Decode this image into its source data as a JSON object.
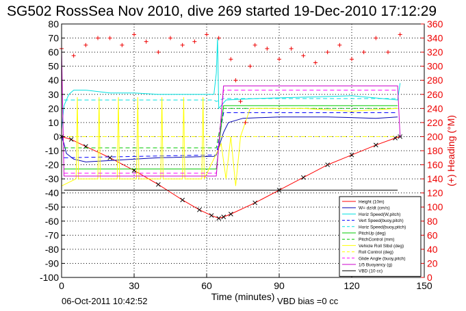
{
  "header": {
    "title": "SG502 RossSea Nov 2010, dive 269 started 19-Dec-2010 17:12:29",
    "timestamp": "06-Oct-2011 10:42:52",
    "vbd_bias": "VBD bias =0 cc"
  },
  "colors": {
    "height": "#ff0000",
    "w": "#0000b0",
    "horiz": "#00e0e0",
    "vert": "#0000ff",
    "pitch": "#00c800",
    "roll": "#ffff00",
    "glide": "#ff00ff",
    "buoy": "#cc00cc",
    "vbd": "#000000",
    "heading": "#ee0000"
  },
  "chart_data": {
    "type": "line",
    "title": "SG502 RossSea Nov 2010, dive 269 started 19-Dec-2010 17:12:29",
    "xlabel": "Time (minutes)",
    "ylabel": "",
    "ylabel_right": "(+) Heading (°M)",
    "xlim": [
      0,
      150
    ],
    "ylim": [
      -100,
      80
    ],
    "ylim_right": [
      0,
      360
    ],
    "xticks": [
      0,
      30,
      60,
      90,
      120,
      150
    ],
    "yticks": [
      -100,
      -90,
      -80,
      -70,
      -60,
      -50,
      -40,
      -30,
      -20,
      -10,
      0,
      10,
      20,
      30,
      40,
      50,
      60,
      70,
      80
    ],
    "yticks_right": [
      0,
      20,
      40,
      60,
      80,
      100,
      120,
      140,
      160,
      180,
      200,
      220,
      240,
      260,
      280,
      300,
      320,
      340,
      360
    ],
    "grid": true,
    "legend_position": "bottom-right",
    "legend": [
      "Height (10m)",
      "W= dz/dt (cm/s)",
      "Horiz Speed(W,pitch)",
      "Vert Speed(buoy,pitch)",
      "Horiz Speed(buoy,pitch)",
      "PitchUp (deg)",
      "PitchControl (mm)",
      "Vehicle Roll Stbd (deg)",
      "Roll Control (deg)",
      "Glide Angle (buoy,pitch)",
      "1/5 Buoyancy (g)",
      "VBD (10 cc)"
    ],
    "series": [
      {
        "name": "Height (10m)",
        "x": [
          0,
          4,
          10,
          20,
          30,
          40,
          50,
          57,
          62,
          65,
          67,
          70,
          80,
          90,
          100,
          110,
          120,
          130,
          138,
          140
        ],
        "y": [
          0,
          -2,
          -7,
          -15,
          -24,
          -34,
          -45,
          -52,
          -56,
          -58,
          -57,
          -55,
          -47,
          -38,
          -29,
          -20,
          -13,
          -6,
          -1,
          0
        ]
      },
      {
        "name": "W= dz/dt (cm/s)",
        "x": [
          0,
          1,
          2,
          5,
          10,
          20,
          40,
          63,
          64,
          67,
          69,
          75,
          90,
          110,
          130,
          139
        ],
        "y": [
          0,
          -5,
          -12,
          -16,
          -18,
          -17,
          -15,
          -14,
          -13,
          3,
          10,
          13,
          14,
          14,
          13,
          14
        ]
      },
      {
        "name": "Horiz Speed(W,pitch)",
        "x": [
          0,
          1,
          3,
          5,
          10,
          20,
          30,
          40,
          50,
          63,
          64,
          64.5,
          65,
          66,
          68,
          80,
          100,
          120,
          139,
          140
        ],
        "y": [
          5,
          22,
          30,
          33,
          33,
          31,
          31,
          30,
          30,
          30,
          45,
          70,
          20,
          22,
          26,
          27,
          28,
          29,
          26,
          38
        ]
      },
      {
        "name": "Vert Speed(buoy,pitch)",
        "x": [
          1,
          63,
          64,
          67,
          139
        ],
        "y": [
          -15,
          -13,
          -13,
          17,
          17
        ]
      },
      {
        "name": "Horiz Speed(buoy,pitch)",
        "x": [
          1,
          63,
          64,
          67,
          139
        ],
        "y": [
          26,
          26,
          25,
          27,
          27
        ]
      },
      {
        "name": "PitchUp (deg)",
        "x": [
          1,
          63,
          64,
          67,
          139
        ],
        "y": [
          -23,
          -23,
          -23,
          22,
          22
        ]
      },
      {
        "name": "PitchControl (mm)",
        "x": [
          1,
          63,
          64,
          67,
          139
        ],
        "y": [
          -8,
          -8,
          -8,
          20,
          20
        ]
      },
      {
        "name": "Vehicle Roll Stbd (deg)",
        "x": [
          0,
          6,
          6.5,
          7,
          15,
          15.5,
          16,
          23,
          23.5,
          24,
          31,
          31.5,
          32,
          41,
          41.5,
          42,
          50,
          50.5,
          51,
          58,
          58.5,
          59,
          66,
          68,
          70,
          72,
          74,
          76,
          78,
          80,
          100,
          120,
          139
        ],
        "y": [
          -35,
          -30,
          28,
          -30,
          -30,
          28,
          -30,
          -30,
          28,
          -30,
          -30,
          28,
          -30,
          -30,
          28,
          -30,
          -30,
          28,
          -30,
          -30,
          28,
          -30,
          -5,
          -30,
          0,
          -35,
          0,
          10,
          20,
          20,
          20,
          18,
          20
        ]
      },
      {
        "name": "Roll Control (deg)",
        "x": [
          0,
          139
        ],
        "y": [
          0,
          0
        ]
      },
      {
        "name": "Glide Angle (buoy,pitch)",
        "x": [
          1,
          63,
          64,
          67,
          139
        ],
        "y": [
          -26,
          -26,
          -26,
          33,
          33
        ]
      },
      {
        "name": "1/5 Buoyancy (g)",
        "x": [
          0,
          1,
          63,
          64,
          67,
          139,
          140
        ],
        "y": [
          62,
          -28,
          -28,
          -28,
          36,
          36,
          0
        ]
      },
      {
        "name": "VBD (10 cc)",
        "x": [
          1,
          139
        ],
        "y": [
          -38,
          -38
        ]
      },
      {
        "name": "Heading",
        "axis": "right",
        "x": [
          0,
          5,
          10,
          15,
          20,
          25,
          30,
          35,
          40,
          45,
          50,
          55,
          60,
          65,
          70,
          72,
          74,
          76,
          78,
          80,
          85,
          90,
          95,
          100,
          105,
          110,
          115,
          120,
          125,
          130,
          135,
          140
        ],
        "y": [
          325,
          315,
          330,
          340,
          340,
          330,
          345,
          335,
          320,
          340,
          330,
          335,
          345,
          340,
          310,
          280,
          250,
          220,
          300,
          330,
          325,
          310,
          325,
          315,
          305,
          320,
          330,
          310,
          320,
          340,
          320,
          345
        ]
      }
    ]
  }
}
